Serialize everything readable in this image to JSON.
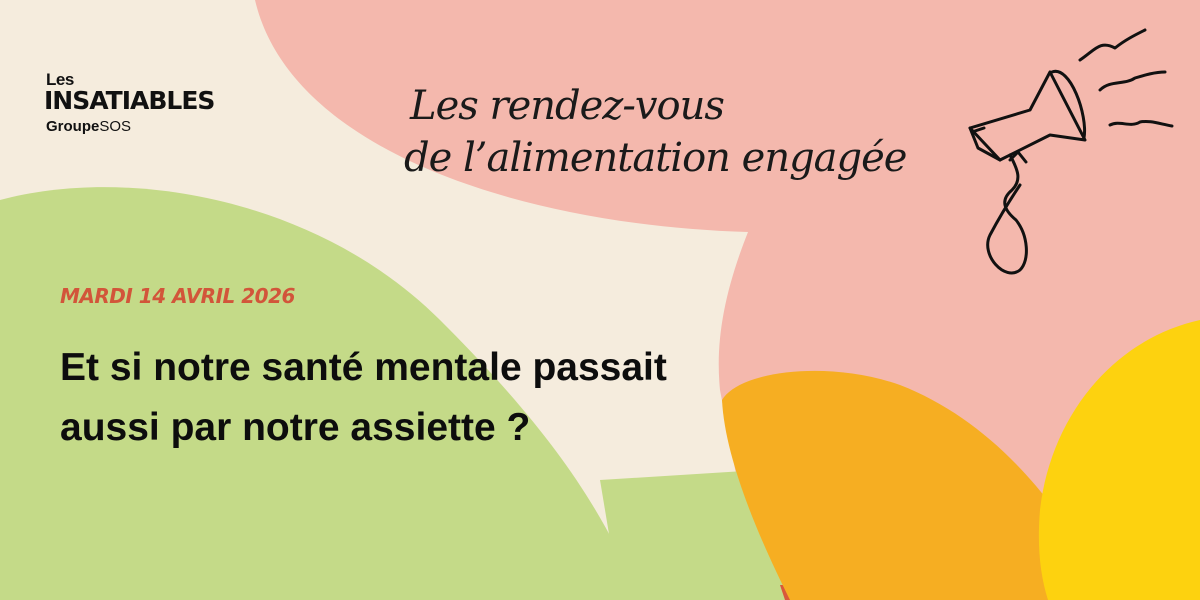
{
  "logo": {
    "les": "Les",
    "main": "INSATIABLES",
    "group_bold": "Groupe",
    "group_light": "SOS"
  },
  "tagline": {
    "line1": "Les rendez-vous",
    "line2": "de l’alimentation engagée"
  },
  "date": "MARDI 14 AVRIL 2026",
  "headline": {
    "line1": "Et si notre santé mentale passait",
    "line2": "aussi par notre assiette ?"
  },
  "illustration": "megaphone-icon",
  "colors": {
    "background": "#f5ecdd",
    "pink": "#f4b8ad",
    "green": "#c4da88",
    "orange": "#f6ae22",
    "yellow": "#fdd20f",
    "date": "#d2553a"
  }
}
